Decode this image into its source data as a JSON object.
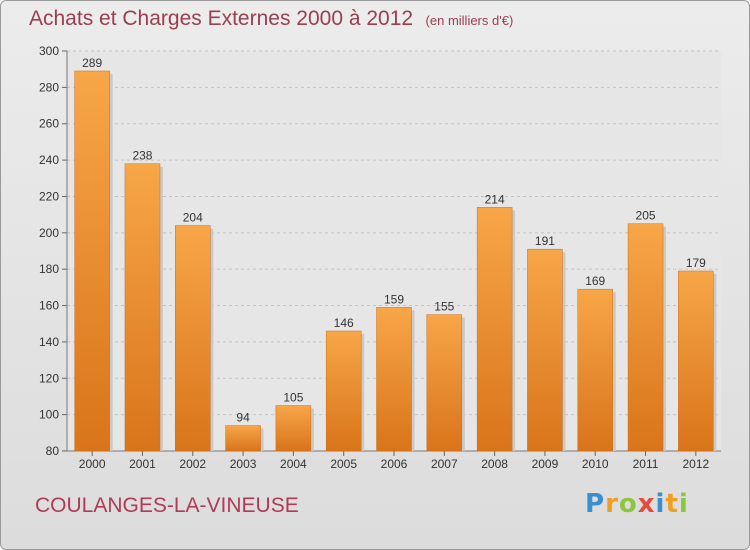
{
  "header": {
    "title": "Achats et Charges Externes 2000 à 2012",
    "unit": "(en milliers d'€)"
  },
  "footer": {
    "commune": "COULANGES-LA-VINEUSE",
    "brand": [
      "P",
      "r",
      "o",
      "x",
      "i",
      "t",
      "i"
    ],
    "brand_colors": [
      "#3a8fd0",
      "#f0a020",
      "#8cc63f",
      "#e84a3c",
      "#3a8fd0",
      "#f0a020",
      "#8cc63f"
    ]
  },
  "chart_data": {
    "type": "bar",
    "categories": [
      "2000",
      "2001",
      "2002",
      "2003",
      "2004",
      "2005",
      "2006",
      "2007",
      "2008",
      "2009",
      "2010",
      "2011",
      "2012"
    ],
    "values": [
      289,
      238,
      204,
      94,
      105,
      146,
      159,
      155,
      214,
      191,
      169,
      205,
      179
    ],
    "ylim": [
      80,
      300
    ],
    "yticks": [
      80,
      100,
      120,
      140,
      160,
      180,
      200,
      220,
      240,
      260,
      280,
      300
    ],
    "grid": true,
    "bar_color": "#f0932b"
  }
}
